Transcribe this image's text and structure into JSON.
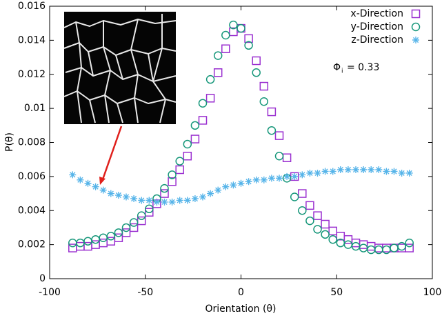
{
  "chart_data": {
    "type": "scatter",
    "x_label": "Orientation (θ)",
    "y_label": "P(θ)",
    "xlim": [
      -100,
      100
    ],
    "xticks": [
      -100,
      -50,
      0,
      50,
      100
    ],
    "ylim": [
      0,
      0.016
    ],
    "yticks": [
      0,
      0.002,
      0.004,
      0.006,
      0.008,
      0.01,
      0.012,
      0.014,
      0.016
    ],
    "legend": "top-right",
    "annotation": {
      "symbol": "Φ",
      "subscript": "i",
      "text": "= 0.33"
    },
    "x": [
      -88,
      -84,
      -80,
      -76,
      -72,
      -68,
      -64,
      -60,
      -56,
      -52,
      -48,
      -44,
      -40,
      -36,
      -32,
      -28,
      -24,
      -20,
      -16,
      -12,
      -8,
      -4,
      0,
      4,
      8,
      12,
      16,
      20,
      24,
      28,
      32,
      36,
      40,
      44,
      48,
      52,
      56,
      60,
      64,
      68,
      72,
      76,
      80,
      84,
      88
    ],
    "series": [
      {
        "name": "x-Direction",
        "color": "#9a2fd0",
        "marker": "square",
        "values": [
          0.0018,
          0.0019,
          0.0019,
          0.002,
          0.0021,
          0.0022,
          0.0024,
          0.0027,
          0.003,
          0.0034,
          0.0039,
          0.0044,
          0.005,
          0.0057,
          0.0064,
          0.0072,
          0.0082,
          0.0093,
          0.0106,
          0.0121,
          0.0135,
          0.0145,
          0.0147,
          0.0141,
          0.0128,
          0.0113,
          0.0098,
          0.0084,
          0.0071,
          0.006,
          0.005,
          0.0043,
          0.0037,
          0.0032,
          0.0028,
          0.0025,
          0.0023,
          0.0021,
          0.002,
          0.0019,
          0.0018,
          0.0018,
          0.0018,
          0.0018,
          0.0018
        ]
      },
      {
        "name": "y-Direction",
        "color": "#16977a",
        "marker": "circle",
        "values": [
          0.0021,
          0.0021,
          0.0022,
          0.0023,
          0.0024,
          0.0025,
          0.0027,
          0.003,
          0.0033,
          0.0037,
          0.0041,
          0.0047,
          0.0053,
          0.0061,
          0.0069,
          0.0079,
          0.009,
          0.0103,
          0.0117,
          0.0131,
          0.0143,
          0.0149,
          0.0147,
          0.0137,
          0.0121,
          0.0104,
          0.0087,
          0.0072,
          0.0059,
          0.0048,
          0.004,
          0.0034,
          0.0029,
          0.0026,
          0.0023,
          0.0021,
          0.002,
          0.0019,
          0.0018,
          0.0017,
          0.0017,
          0.0017,
          0.0018,
          0.0019,
          0.0021
        ]
      },
      {
        "name": "z-Direction",
        "color": "#56b4e9",
        "marker": "asterisk",
        "values": [
          0.0061,
          0.0058,
          0.0056,
          0.0054,
          0.0052,
          0.005,
          0.0049,
          0.0048,
          0.0047,
          0.0046,
          0.0046,
          0.0045,
          0.0045,
          0.0045,
          0.0046,
          0.0046,
          0.0047,
          0.0048,
          0.005,
          0.0052,
          0.0054,
          0.0055,
          0.0056,
          0.0057,
          0.0058,
          0.0058,
          0.0059,
          0.0059,
          0.006,
          0.006,
          0.0061,
          0.0062,
          0.0062,
          0.0063,
          0.0063,
          0.0064,
          0.0064,
          0.0064,
          0.0064,
          0.0064,
          0.0064,
          0.0063,
          0.0063,
          0.0062,
          0.0062
        ]
      }
    ]
  }
}
